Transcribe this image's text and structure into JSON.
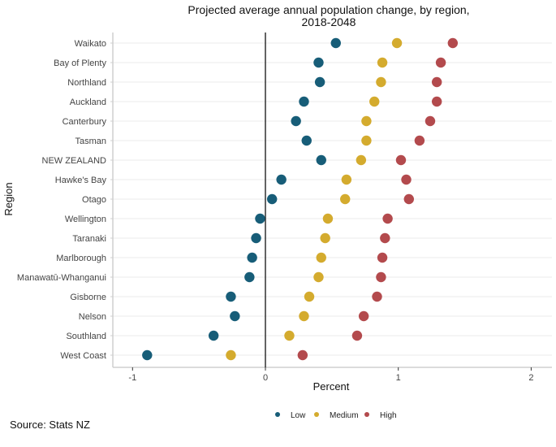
{
  "chart_data": {
    "type": "scatter",
    "subtype": "dot-plot",
    "title": "Projected average annual population change, by region,",
    "title_line2": "2018-2048",
    "xlabel": "Percent",
    "ylabel": "Region",
    "xlim": [
      -1.2,
      2.1
    ],
    "xticks": [
      -1,
      0,
      1,
      2
    ],
    "xtick_labels": [
      "-1",
      "0",
      "1",
      "2"
    ],
    "grid": "horizontal",
    "reference_line": 0,
    "legend_position": "bottom",
    "categories": [
      "Waikato",
      "Bay of Plenty",
      "Northland",
      "Auckland",
      "Canterbury",
      "Tasman",
      "NEW ZEALAND",
      "Hawke's Bay",
      "Otago",
      "Wellington",
      "Taranaki",
      "Marlborough",
      "Manawatū-Whanganui",
      "Gisborne",
      "Nelson",
      "Southland",
      "West Coast"
    ],
    "series": [
      {
        "name": "Low",
        "color": "#175d78",
        "values": [
          0.53,
          0.4,
          0.41,
          0.29,
          0.23,
          0.31,
          0.42,
          0.12,
          0.05,
          -0.04,
          -0.07,
          -0.1,
          -0.12,
          -0.26,
          -0.23,
          -0.39,
          -0.89
        ]
      },
      {
        "name": "Medium",
        "color": "#d4ab2e",
        "values": [
          0.99,
          0.88,
          0.87,
          0.82,
          0.76,
          0.76,
          0.72,
          0.61,
          0.6,
          0.47,
          0.45,
          0.42,
          0.4,
          0.33,
          0.29,
          0.18,
          -0.26
        ]
      },
      {
        "name": "High",
        "color": "#b34a4d",
        "values": [
          1.41,
          1.32,
          1.29,
          1.29,
          1.24,
          1.16,
          1.02,
          1.06,
          1.08,
          0.92,
          0.9,
          0.88,
          0.87,
          0.84,
          0.74,
          0.69,
          0.28
        ]
      }
    ]
  },
  "source": "Source: Stats NZ"
}
